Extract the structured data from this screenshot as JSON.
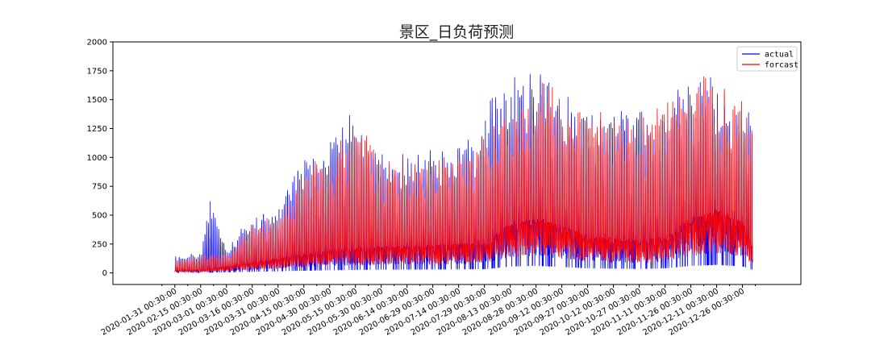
{
  "chart_data": {
    "type": "line",
    "title": "景区_日负荷预测",
    "xlabel": "",
    "ylabel": "",
    "x_start": "2020-01-31 00:30:00",
    "x_end": "2020-12-31 23:30:00",
    "ylim": [
      -100,
      2000
    ],
    "yticks": [
      0,
      250,
      500,
      750,
      1000,
      1250,
      1500,
      1750,
      2000
    ],
    "xtick_labels": [
      "2020-01-31 00:30:00",
      "2020-02-15 00:30:00",
      "2020-03-01 00:30:00",
      "2020-03-16 00:30:00",
      "2020-03-31 00:30:00",
      "2020-04-15 00:30:00",
      "2020-04-30 00:30:00",
      "2020-05-15 00:30:00",
      "2020-05-30 00:30:00",
      "2020-06-14 00:30:00",
      "2020-06-29 00:30:00",
      "2020-07-14 00:30:00",
      "2020-07-29 00:30:00",
      "2020-08-13 00:30:00",
      "2020-08-28 00:30:00",
      "2020-09-12 00:30:00",
      "2020-09-27 00:30:00",
      "2020-10-12 00:30:00",
      "2020-10-27 00:30:00",
      "2020-11-11 00:30:00",
      "2020-11-26 00:30:00",
      "2020-12-11 00:30:00",
      "2020-12-26 00:30:00"
    ],
    "grid": false,
    "legend_position": "top-right",
    "series": [
      {
        "name": "actual",
        "color": "#0000ff",
        "note_daily_peaks": [
          [
            "2020-02-01",
            160
          ],
          [
            "2020-02-05",
            150
          ],
          [
            "2020-02-15",
            220
          ],
          [
            "2020-02-20",
            730
          ],
          [
            "2020-03-01",
            200
          ],
          [
            "2020-03-10",
            500
          ],
          [
            "2020-03-20",
            560
          ],
          [
            "2020-04-01",
            600
          ],
          [
            "2020-04-10",
            1050
          ],
          [
            "2020-04-25",
            1150
          ],
          [
            "2020-05-10",
            1520
          ],
          [
            "2020-05-25",
            1200
          ],
          [
            "2020-06-10",
            1100
          ],
          [
            "2020-06-25",
            1150
          ],
          [
            "2020-07-10",
            1200
          ],
          [
            "2020-07-25",
            1300
          ],
          [
            "2020-08-05",
            1840
          ],
          [
            "2020-08-20",
            1800
          ],
          [
            "2020-09-01",
            1860
          ],
          [
            "2020-09-15",
            1650
          ],
          [
            "2020-10-01",
            1600
          ],
          [
            "2020-10-15",
            1600
          ],
          [
            "2020-11-01",
            1550
          ],
          [
            "2020-11-15",
            1700
          ],
          [
            "2020-11-28",
            1880
          ],
          [
            "2020-12-10",
            1800
          ],
          [
            "2020-12-20",
            1500
          ],
          [
            "2020-12-30",
            1550
          ]
        ]
      },
      {
        "name": "forcast",
        "color": "#ff0000",
        "note_daily_peaks": [
          [
            "2020-02-01",
            120
          ],
          [
            "2020-02-15",
            180
          ],
          [
            "2020-03-01",
            180
          ],
          [
            "2020-03-15",
            450
          ],
          [
            "2020-04-01",
            550
          ],
          [
            "2020-04-15",
            1000
          ],
          [
            "2020-05-01",
            1100
          ],
          [
            "2020-05-12",
            1450
          ],
          [
            "2020-06-01",
            1050
          ],
          [
            "2020-07-01",
            1100
          ],
          [
            "2020-07-25",
            1250
          ],
          [
            "2020-08-10",
            1700
          ],
          [
            "2020-09-01",
            1750
          ],
          [
            "2020-10-01",
            1550
          ],
          [
            "2020-11-01",
            1500
          ],
          [
            "2020-11-20",
            1750
          ],
          [
            "2020-12-01",
            1920
          ],
          [
            "2020-12-15",
            1700
          ],
          [
            "2020-12-30",
            1640
          ]
        ]
      }
    ],
    "daily_base_levels": [
      [
        "2020-01-31",
        20
      ],
      [
        "2020-02-15",
        20
      ],
      [
        "2020-03-01",
        50
      ],
      [
        "2020-03-31",
        110
      ],
      [
        "2020-04-30",
        170
      ],
      [
        "2020-05-30",
        200
      ],
      [
        "2020-06-29",
        210
      ],
      [
        "2020-07-29",
        230
      ],
      [
        "2020-08-13",
        380
      ],
      [
        "2020-08-28",
        420
      ],
      [
        "2020-09-27",
        280
      ],
      [
        "2020-10-27",
        240
      ],
      [
        "2020-11-11",
        280
      ],
      [
        "2020-11-26",
        420
      ],
      [
        "2020-12-11",
        480
      ],
      [
        "2020-12-26",
        380
      ],
      [
        "2020-12-31",
        200
      ]
    ]
  }
}
